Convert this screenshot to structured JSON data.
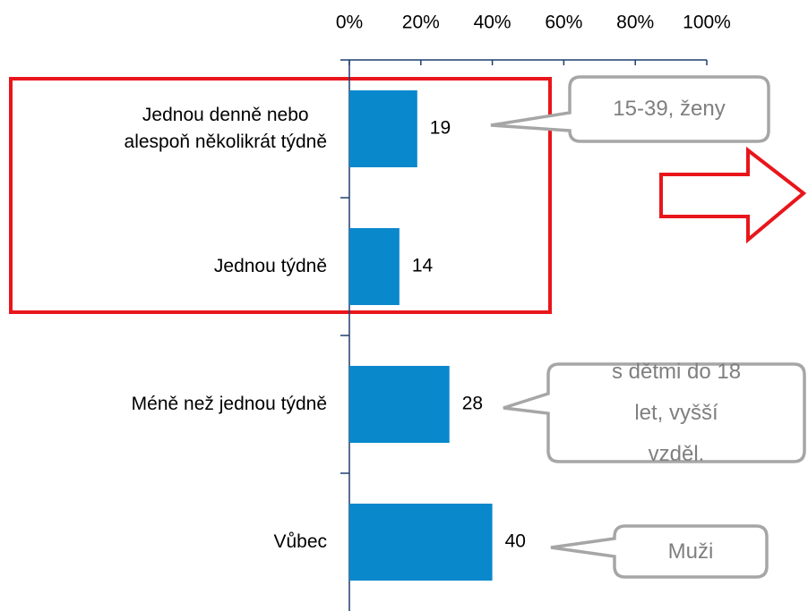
{
  "chart_data": {
    "type": "bar",
    "orientation": "horizontal",
    "categories": [
      "Jednou denně nebo\nalespoň několikrát týdně",
      "Jednou týdně",
      "Méně než jednou týdně",
      "Vůbec"
    ],
    "values": [
      19,
      14,
      28,
      40
    ],
    "color": "#0a88cc",
    "xlim": [
      0,
      100
    ],
    "xticks": [
      {
        "value": 0,
        "label": "0%"
      },
      {
        "value": 20,
        "label": "20%"
      },
      {
        "value": 40,
        "label": "40%"
      },
      {
        "value": 60,
        "label": "60%"
      },
      {
        "value": 80,
        "label": "80%"
      },
      {
        "value": 100,
        "label": "100%"
      }
    ],
    "annotations": [
      "15-39, ženy",
      "s dětmi do 18\nlet, vyšší vzděl.",
      "Muži"
    ]
  }
}
